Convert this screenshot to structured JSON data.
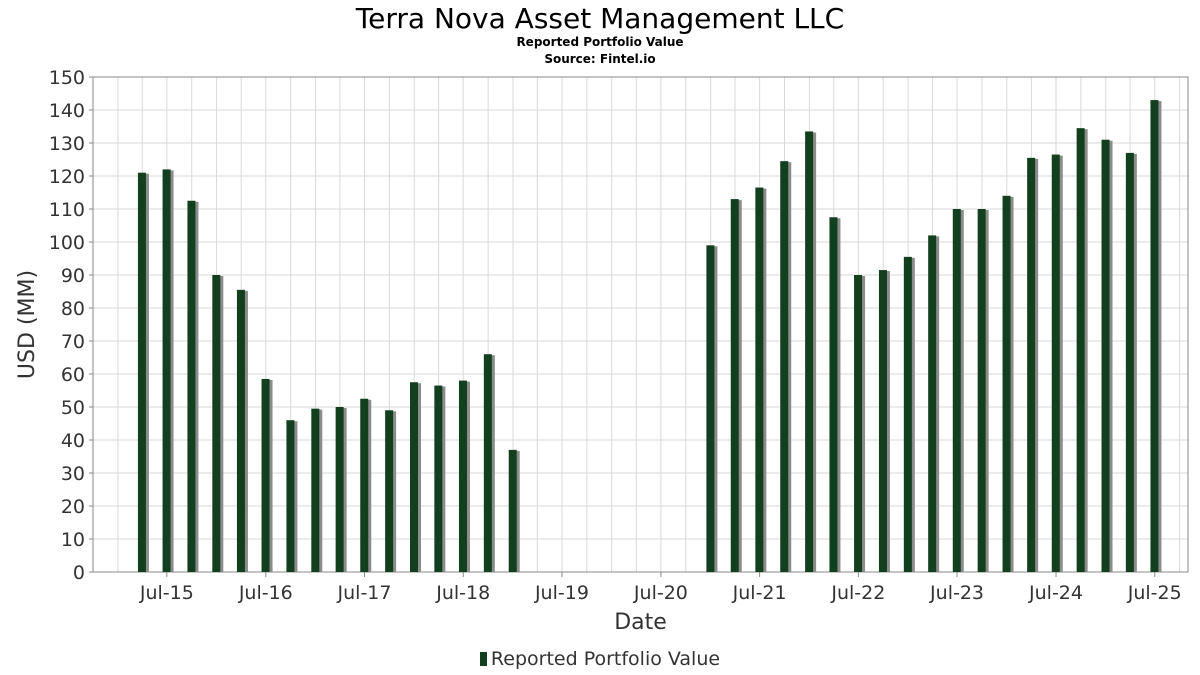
{
  "chart_data": {
    "type": "bar",
    "title": "Terra Nova Asset Management LLC",
    "subtitle": "Reported Portfolio Value",
    "source": "Source: Fintel.io",
    "xlabel": "Date",
    "ylabel": "USD (MM)",
    "ylim": [
      0,
      150
    ],
    "yticks": [
      0,
      10,
      20,
      30,
      40,
      50,
      60,
      70,
      80,
      90,
      100,
      110,
      120,
      130,
      140,
      150
    ],
    "xticks": [
      "Jul-15",
      "Jul-16",
      "Jul-17",
      "Jul-18",
      "Jul-19",
      "Jul-20",
      "Jul-21",
      "Jul-22",
      "Jul-23",
      "Jul-24",
      "Jul-25"
    ],
    "grid": true,
    "legend_position": "bottom",
    "colors": {
      "bar": "#123f1e",
      "shadow": "#8c8c8c",
      "grid": "#d9d9d9"
    },
    "series": [
      {
        "name": "Reported Portfolio Value",
        "points": [
          {
            "x": "2015-03-31",
            "y": 121
          },
          {
            "x": "2015-06-30",
            "y": 122
          },
          {
            "x": "2015-09-30",
            "y": 112.5
          },
          {
            "x": "2015-12-31",
            "y": 90
          },
          {
            "x": "2016-03-31",
            "y": 85.5
          },
          {
            "x": "2016-06-30",
            "y": 58.5
          },
          {
            "x": "2016-09-30",
            "y": 46
          },
          {
            "x": "2016-12-31",
            "y": 49.5
          },
          {
            "x": "2017-03-31",
            "y": 50
          },
          {
            "x": "2017-06-30",
            "y": 52.5
          },
          {
            "x": "2017-09-30",
            "y": 49
          },
          {
            "x": "2017-12-31",
            "y": 57.5
          },
          {
            "x": "2018-03-31",
            "y": 56.5
          },
          {
            "x": "2018-06-30",
            "y": 58
          },
          {
            "x": "2018-09-30",
            "y": 66
          },
          {
            "x": "2018-12-31",
            "y": 37
          },
          {
            "x": "2020-12-31",
            "y": 99
          },
          {
            "x": "2021-03-31",
            "y": 113
          },
          {
            "x": "2021-06-30",
            "y": 116.5
          },
          {
            "x": "2021-09-30",
            "y": 124.5
          },
          {
            "x": "2021-12-31",
            "y": 133.5
          },
          {
            "x": "2022-03-31",
            "y": 107.5
          },
          {
            "x": "2022-06-30",
            "y": 90
          },
          {
            "x": "2022-09-30",
            "y": 91.5
          },
          {
            "x": "2022-12-31",
            "y": 95.5
          },
          {
            "x": "2023-03-31",
            "y": 102
          },
          {
            "x": "2023-06-30",
            "y": 110
          },
          {
            "x": "2023-09-30",
            "y": 110
          },
          {
            "x": "2023-12-31",
            "y": 114
          },
          {
            "x": "2024-03-31",
            "y": 125.5
          },
          {
            "x": "2024-06-30",
            "y": 126.5
          },
          {
            "x": "2024-09-30",
            "y": 134.5
          },
          {
            "x": "2024-12-31",
            "y": 131
          },
          {
            "x": "2025-03-31",
            "y": 127
          },
          {
            "x": "2025-06-30",
            "y": 143
          }
        ]
      }
    ]
  }
}
